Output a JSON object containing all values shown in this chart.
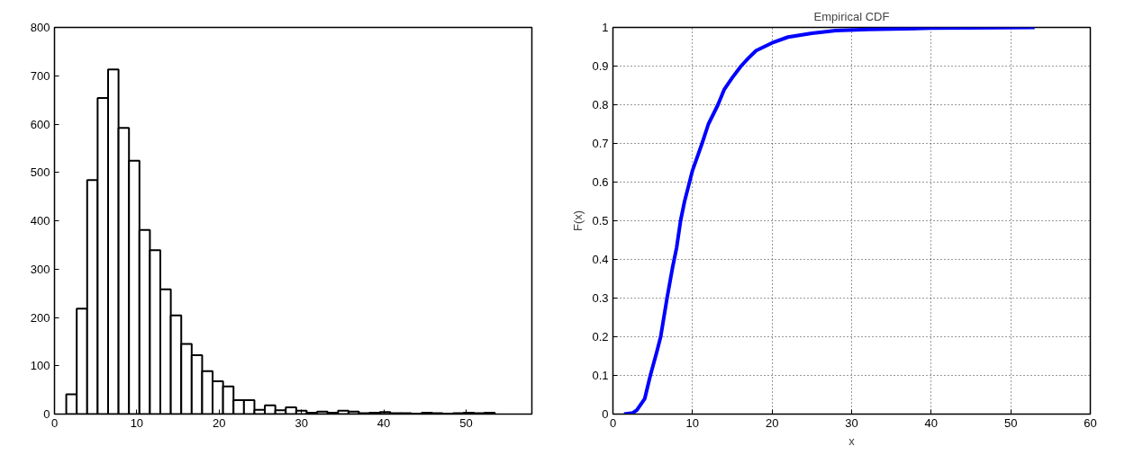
{
  "chart_data": [
    {
      "type": "histogram",
      "bins": [
        1.43,
        2.7,
        3.97,
        5.24,
        6.51,
        7.78,
        9.05,
        10.32,
        11.59,
        12.86,
        14.13,
        15.4,
        16.67,
        17.94,
        19.21,
        20.48,
        21.75,
        23.02,
        24.29,
        25.56,
        26.83,
        28.1,
        29.37,
        30.64,
        31.91,
        33.18,
        34.45,
        35.72,
        36.99,
        38.26,
        39.53,
        40.8,
        42.07,
        43.34,
        44.61,
        45.88,
        47.15,
        48.42,
        49.69,
        50.96,
        52.23,
        53.5
      ],
      "values": [
        41,
        218,
        484,
        654,
        713,
        592,
        524,
        381,
        339,
        258,
        204,
        145,
        122,
        89,
        68,
        57,
        29,
        29,
        9,
        18,
        8,
        14,
        7,
        3,
        5,
        3,
        7,
        5,
        2,
        3,
        4,
        2,
        2,
        1,
        3,
        2,
        1,
        2,
        3,
        2,
        3
      ],
      "color": "#ffffff",
      "xlim": [
        0,
        58
      ],
      "ylim": [
        0,
        800
      ],
      "xticks": [
        0,
        10,
        20,
        30,
        40,
        50
      ],
      "yticks": [
        0,
        100,
        200,
        300,
        400,
        500,
        600,
        700,
        800
      ],
      "grid": false
    },
    {
      "type": "line",
      "title": "Empirical CDF",
      "xlabel": "x",
      "ylabel": "F(x)",
      "series": [
        {
          "color": "#0000ff",
          "x": [
            1.4,
            2.5,
            3,
            4,
            4.7,
            5.5,
            6,
            6.8,
            7.5,
            8,
            8.5,
            9,
            10,
            11.2,
            12,
            13.2,
            14,
            15,
            16.1,
            17,
            18,
            19,
            20,
            22,
            25,
            28,
            32,
            40,
            53
          ],
          "values": [
            0,
            0.003,
            0.01,
            0.04,
            0.1,
            0.16,
            0.2,
            0.3,
            0.38,
            0.43,
            0.5,
            0.55,
            0.63,
            0.7,
            0.75,
            0.8,
            0.84,
            0.87,
            0.9,
            0.92,
            0.94,
            0.95,
            0.96,
            0.975,
            0.985,
            0.992,
            0.995,
            0.998,
            1.0
          ]
        }
      ],
      "xlim": [
        0,
        60
      ],
      "ylim": [
        0,
        1
      ],
      "xticks": [
        0,
        10,
        20,
        30,
        40,
        50,
        60
      ],
      "yticks": [
        0,
        0.1,
        0.2,
        0.3,
        0.4,
        0.5,
        0.6,
        0.7,
        0.8,
        0.9,
        1
      ],
      "grid": true,
      "line_style": "solid"
    }
  ]
}
